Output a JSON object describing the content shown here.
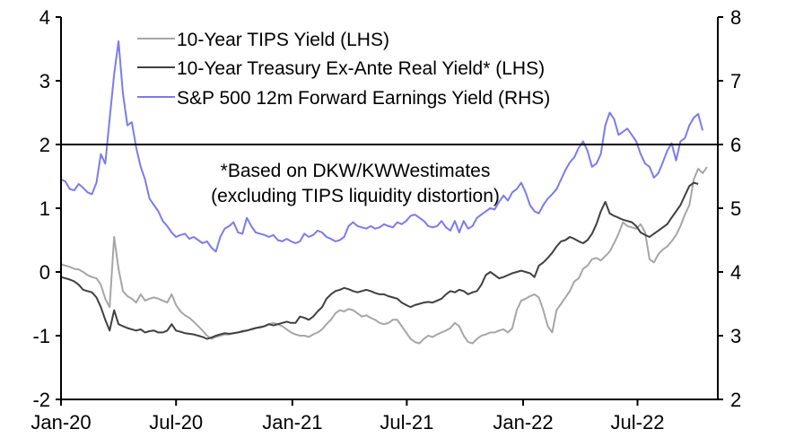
{
  "chart_data": {
    "type": "line",
    "title": "",
    "xlabel": "",
    "ylabel_left": "",
    "ylabel_right": "",
    "x_tick_labels": [
      "Jan-20",
      "Jul-20",
      "Jan-21",
      "Jul-21",
      "Jan-22",
      "Jul-22"
    ],
    "x_tick_dates": [
      "2020-01-01",
      "2020-07-01",
      "2021-01-01",
      "2021-07-01",
      "2022-01-01",
      "2022-07-01"
    ],
    "x_range": [
      "2020-01-01",
      "2022-12-31"
    ],
    "y_left": {
      "range": [
        -2,
        4
      ],
      "ticks": [
        "-2",
        "-1",
        "0",
        "1",
        "2",
        "3",
        "4"
      ]
    },
    "y_right": {
      "range": [
        2,
        8
      ],
      "ticks": [
        "2",
        "3",
        "4",
        "5",
        "6",
        "7",
        "8"
      ]
    },
    "reference_line": {
      "axis": "left",
      "value": 2
    },
    "grid": false,
    "legend_position": "top-center",
    "annotation": [
      "*Based on DKW/KWWestimates",
      "(excluding TIPS liquidity distortion)"
    ],
    "x_start": "2020-01-01",
    "x_step_days": 7,
    "series": [
      {
        "name": "10-Year TIPS Yield (LHS)",
        "axis": "left",
        "color": "#a6a6a6",
        "values": [
          0.12,
          0.1,
          0.08,
          0.05,
          0.04,
          0.0,
          -0.05,
          -0.08,
          -0.1,
          -0.2,
          -0.42,
          -0.55,
          0.55,
          0.05,
          -0.3,
          -0.38,
          -0.42,
          -0.48,
          -0.35,
          -0.45,
          -0.42,
          -0.4,
          -0.42,
          -0.45,
          -0.48,
          -0.35,
          -0.52,
          -0.62,
          -0.68,
          -0.72,
          -0.78,
          -0.85,
          -0.92,
          -1.0,
          -1.05,
          -1.02,
          -1.0,
          -0.98,
          -0.98,
          -0.96,
          -0.95,
          -0.94,
          -0.92,
          -0.9,
          -0.88,
          -0.86,
          -0.85,
          -0.82,
          -0.8,
          -0.82,
          -0.85,
          -0.9,
          -0.95,
          -0.98,
          -1.0,
          -1.0,
          -1.02,
          -0.98,
          -0.95,
          -0.9,
          -0.82,
          -0.75,
          -0.65,
          -0.6,
          -0.62,
          -0.58,
          -0.6,
          -0.65,
          -0.7,
          -0.68,
          -0.72,
          -0.75,
          -0.8,
          -0.82,
          -0.8,
          -0.75,
          -0.75,
          -0.85,
          -0.95,
          -1.05,
          -1.1,
          -1.12,
          -1.05,
          -1.0,
          -1.02,
          -0.98,
          -0.95,
          -0.92,
          -0.88,
          -0.8,
          -0.85,
          -1.0,
          -1.1,
          -1.12,
          -1.05,
          -1.0,
          -0.98,
          -0.95,
          -0.95,
          -0.92,
          -0.9,
          -0.95,
          -0.88,
          -0.6,
          -0.45,
          -0.42,
          -0.38,
          -0.35,
          -0.4,
          -0.6,
          -0.85,
          -0.95,
          -0.6,
          -0.5,
          -0.4,
          -0.3,
          -0.15,
          -0.1,
          0.05,
          0.1,
          0.2,
          0.22,
          0.18,
          0.25,
          0.32,
          0.45,
          0.6,
          0.78,
          0.72,
          0.7,
          0.68,
          0.75,
          0.62,
          0.2,
          0.15,
          0.28,
          0.35,
          0.4,
          0.48,
          0.58,
          0.72,
          0.9,
          1.05,
          1.45,
          1.62,
          1.55,
          1.65
        ]
      },
      {
        "name": "10-Year Treasury Ex-Ante Real Yield* (LHS)",
        "axis": "left",
        "color": "#404040",
        "values": [
          -0.08,
          -0.1,
          -0.12,
          -0.15,
          -0.2,
          -0.28,
          -0.3,
          -0.32,
          -0.4,
          -0.55,
          -0.75,
          -0.92,
          -0.6,
          -0.82,
          -0.85,
          -0.88,
          -0.9,
          -0.92,
          -0.9,
          -0.95,
          -0.93,
          -0.92,
          -0.95,
          -0.95,
          -0.92,
          -0.82,
          -0.92,
          -0.94,
          -0.96,
          -0.97,
          -0.98,
          -1.0,
          -1.02,
          -1.05,
          -1.03,
          -1.0,
          -0.98,
          -0.96,
          -0.97,
          -0.96,
          -0.95,
          -0.93,
          -0.92,
          -0.9,
          -0.88,
          -0.87,
          -0.85,
          -0.82,
          -0.84,
          -0.82,
          -0.8,
          -0.78,
          -0.8,
          -0.8,
          -0.7,
          -0.72,
          -0.75,
          -0.7,
          -0.62,
          -0.55,
          -0.42,
          -0.35,
          -0.3,
          -0.28,
          -0.25,
          -0.27,
          -0.3,
          -0.32,
          -0.3,
          -0.28,
          -0.3,
          -0.33,
          -0.35,
          -0.35,
          -0.38,
          -0.4,
          -0.42,
          -0.48,
          -0.52,
          -0.55,
          -0.52,
          -0.5,
          -0.48,
          -0.47,
          -0.48,
          -0.45,
          -0.42,
          -0.35,
          -0.3,
          -0.32,
          -0.28,
          -0.3,
          -0.35,
          -0.32,
          -0.3,
          -0.2,
          -0.05,
          0.0,
          -0.05,
          -0.1,
          -0.08,
          -0.05,
          -0.02,
          0.0,
          0.02,
          0.0,
          -0.02,
          -0.08,
          0.1,
          0.15,
          0.22,
          0.3,
          0.4,
          0.48,
          0.5,
          0.55,
          0.52,
          0.48,
          0.45,
          0.5,
          0.6,
          0.75,
          0.95,
          1.1,
          0.92,
          0.88,
          0.85,
          0.82,
          0.8,
          0.78,
          0.72,
          0.62,
          0.58,
          0.55,
          0.6,
          0.65,
          0.7,
          0.75,
          0.85,
          0.95,
          1.05,
          1.2,
          1.35,
          1.4,
          1.38
        ]
      },
      {
        "name": "S&P 500 12m Forward Earnings Yield (RHS)",
        "axis": "right",
        "color": "#7b7bef",
        "values": [
          5.45,
          5.42,
          5.3,
          5.28,
          5.38,
          5.32,
          5.25,
          5.22,
          5.4,
          5.85,
          5.7,
          6.4,
          7.1,
          7.62,
          6.8,
          6.3,
          6.35,
          5.95,
          5.65,
          5.45,
          5.15,
          5.05,
          4.95,
          4.8,
          4.72,
          4.62,
          4.55,
          4.58,
          4.6,
          4.52,
          4.55,
          4.5,
          4.45,
          4.48,
          4.38,
          4.32,
          4.55,
          4.68,
          4.72,
          4.78,
          4.62,
          4.6,
          4.85,
          4.72,
          4.62,
          4.6,
          4.58,
          4.55,
          4.58,
          4.5,
          4.48,
          4.52,
          4.48,
          4.45,
          4.48,
          4.6,
          4.55,
          4.58,
          4.65,
          4.62,
          4.55,
          4.52,
          4.48,
          4.5,
          4.55,
          4.72,
          4.78,
          4.72,
          4.7,
          4.68,
          4.72,
          4.68,
          4.7,
          4.75,
          4.72,
          4.7,
          4.78,
          4.75,
          4.8,
          4.88,
          4.9,
          4.85,
          4.8,
          4.72,
          4.7,
          4.72,
          4.8,
          4.7,
          4.65,
          4.8,
          4.62,
          4.8,
          4.68,
          4.72,
          4.85,
          4.9,
          4.95,
          5.0,
          4.98,
          5.1,
          5.2,
          5.12,
          5.25,
          5.3,
          5.4,
          5.25,
          5.05,
          4.95,
          4.92,
          5.05,
          5.15,
          5.22,
          5.3,
          5.45,
          5.6,
          5.72,
          5.8,
          5.95,
          6.05,
          5.9,
          5.65,
          5.7,
          5.85,
          6.3,
          6.5,
          6.4,
          6.15,
          6.2,
          6.25,
          6.15,
          6.05,
          5.85,
          5.7,
          5.65,
          5.48,
          5.55,
          5.72,
          5.9,
          6.02,
          5.75,
          6.05,
          6.1,
          6.3,
          6.42,
          6.48,
          6.22
        ]
      }
    ]
  },
  "legend": {
    "items": [
      {
        "label": "10-Year TIPS Yield (LHS)",
        "color": "#a6a6a6"
      },
      {
        "label": "10-Year Treasury Ex-Ante Real Yield* (LHS)",
        "color": "#404040"
      },
      {
        "label": "S&P 500 12m Forward Earnings Yield (RHS)",
        "color": "#7b7bef"
      }
    ]
  },
  "annotation": {
    "line1": "*Based on DKW/KWWestimates",
    "line2": "(excluding TIPS liquidity distortion)"
  }
}
